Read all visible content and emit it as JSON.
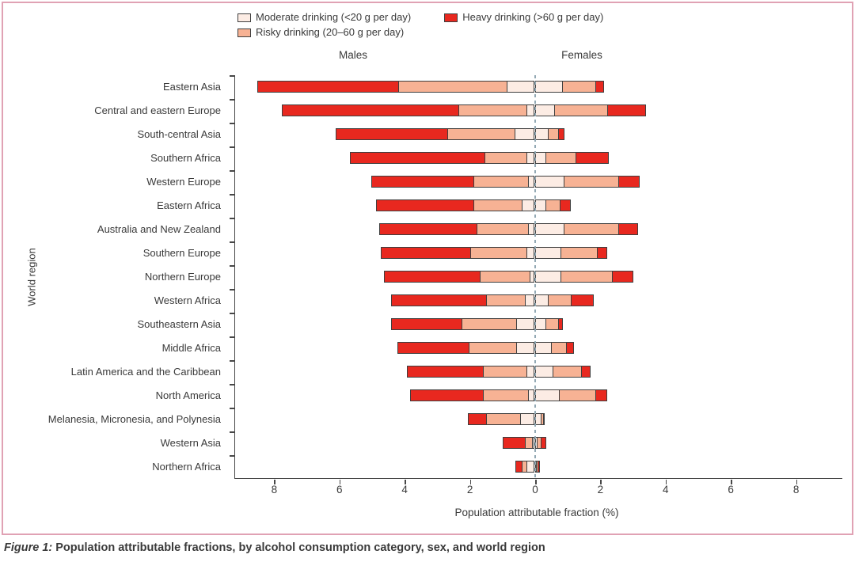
{
  "figure": {
    "caption_prefix": "Figure 1:",
    "caption_text": " Population attributable fractions, by alcohol consumption category, sex, and world region",
    "border_color": "#e0a2b4"
  },
  "legend": {
    "items": [
      {
        "key": "moderate",
        "label": "Moderate drinking (<20 g per day)"
      },
      {
        "key": "risky",
        "label": "Risky drinking (20–60 g per day)"
      },
      {
        "key": "heavy",
        "label": "Heavy drinking (>60 g per day)"
      }
    ]
  },
  "chart_data": {
    "type": "bar",
    "variant": "horizontal-diverging-stacked",
    "title": "",
    "xlabel": "Population attributable fraction (%)",
    "ylabel": "World region",
    "group_headers": {
      "left": "Males",
      "right": "Females"
    },
    "legend_position": "top",
    "grid": false,
    "zero_line": "dashed",
    "xlim": [
      -9.2,
      9.4
    ],
    "x_ticks": [
      {
        "label": "8",
        "value": -8
      },
      {
        "label": "6",
        "value": -6
      },
      {
        "label": "4",
        "value": -4
      },
      {
        "label": "2",
        "value": -2
      },
      {
        "label": "0",
        "value": 0
      },
      {
        "label": "2",
        "value": 2
      },
      {
        "label": "4",
        "value": 4
      },
      {
        "label": "6",
        "value": 6
      },
      {
        "label": "8",
        "value": 8
      }
    ],
    "series_order": [
      "moderate",
      "risky",
      "heavy"
    ],
    "colors": {
      "moderate": "#fcece4",
      "risky": "#f7b294",
      "heavy": "#e8281f"
    },
    "axis_color": "#474747",
    "zero_line_color": "#93a9b4",
    "regions": [
      {
        "name": "Eastern Asia",
        "males": {
          "moderate": 0.85,
          "risky": 3.35,
          "heavy": 4.35
        },
        "females": {
          "moderate": 0.85,
          "risky": 1.05,
          "heavy": 0.25
        }
      },
      {
        "name": "Central and eastern Europe",
        "males": {
          "moderate": 0.25,
          "risky": 2.1,
          "heavy": 5.45
        },
        "females": {
          "moderate": 0.6,
          "risky": 1.65,
          "heavy": 1.2
        }
      },
      {
        "name": "South-central Asia",
        "males": {
          "moderate": 0.6,
          "risky": 2.1,
          "heavy": 3.45
        },
        "females": {
          "moderate": 0.4,
          "risky": 0.35,
          "heavy": 0.2
        }
      },
      {
        "name": "Southern Africa",
        "males": {
          "moderate": 0.25,
          "risky": 1.3,
          "heavy": 4.15
        },
        "females": {
          "moderate": 0.35,
          "risky": 0.95,
          "heavy": 1.0
        }
      },
      {
        "name": "Western Europe",
        "males": {
          "moderate": 0.2,
          "risky": 1.7,
          "heavy": 3.15
        },
        "females": {
          "moderate": 0.9,
          "risky": 1.7,
          "heavy": 0.65
        }
      },
      {
        "name": "Eastern Africa",
        "males": {
          "moderate": 0.4,
          "risky": 1.5,
          "heavy": 3.0
        },
        "females": {
          "moderate": 0.35,
          "risky": 0.45,
          "heavy": 0.35
        }
      },
      {
        "name": "Australia and New Zealand",
        "males": {
          "moderate": 0.2,
          "risky": 1.6,
          "heavy": 3.0
        },
        "females": {
          "moderate": 0.9,
          "risky": 1.7,
          "heavy": 0.6
        }
      },
      {
        "name": "Southern Europe",
        "males": {
          "moderate": 0.25,
          "risky": 1.75,
          "heavy": 2.75
        },
        "females": {
          "moderate": 0.8,
          "risky": 1.15,
          "heavy": 0.3
        }
      },
      {
        "name": "Northern Europe",
        "males": {
          "moderate": 0.15,
          "risky": 1.55,
          "heavy": 2.95
        },
        "females": {
          "moderate": 0.8,
          "risky": 1.6,
          "heavy": 0.65
        }
      },
      {
        "name": "Western Africa",
        "males": {
          "moderate": 0.3,
          "risky": 1.2,
          "heavy": 2.95
        },
        "females": {
          "moderate": 0.4,
          "risky": 0.75,
          "heavy": 0.7
        }
      },
      {
        "name": "Southeastern Asia",
        "males": {
          "moderate": 0.55,
          "risky": 1.7,
          "heavy": 2.2
        },
        "females": {
          "moderate": 0.35,
          "risky": 0.4,
          "heavy": 0.15
        }
      },
      {
        "name": "Middle Africa",
        "males": {
          "moderate": 0.55,
          "risky": 1.5,
          "heavy": 2.2
        },
        "females": {
          "moderate": 0.5,
          "risky": 0.5,
          "heavy": 0.25
        }
      },
      {
        "name": "Latin America and the Caribbean",
        "males": {
          "moderate": 0.25,
          "risky": 1.35,
          "heavy": 2.35
        },
        "females": {
          "moderate": 0.55,
          "risky": 0.9,
          "heavy": 0.3
        }
      },
      {
        "name": "North America",
        "males": {
          "moderate": 0.2,
          "risky": 1.4,
          "heavy": 2.25
        },
        "females": {
          "moderate": 0.75,
          "risky": 1.15,
          "heavy": 0.35
        }
      },
      {
        "name": "Melanesia, Micronesia, and Polynesia",
        "males": {
          "moderate": 0.45,
          "risky": 1.05,
          "heavy": 0.6
        },
        "females": {
          "moderate": 0.2,
          "risky": 0.1,
          "heavy": 0.05
        }
      },
      {
        "name": "Western Asia",
        "males": {
          "moderate": 0.07,
          "risky": 0.25,
          "heavy": 0.7
        },
        "females": {
          "moderate": 0.08,
          "risky": 0.15,
          "heavy": 0.15
        }
      },
      {
        "name": "Northern Africa",
        "males": {
          "moderate": 0.25,
          "risky": 0.17,
          "heavy": 0.22
        },
        "females": {
          "moderate": 0.05,
          "risky": 0.06,
          "heavy": 0.08
        }
      }
    ]
  }
}
